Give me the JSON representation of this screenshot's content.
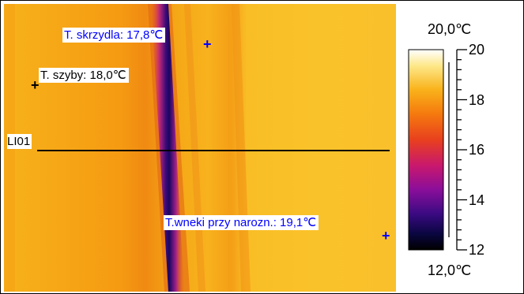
{
  "markers": [
    {
      "label": "T. skrzydla: 17,8℃",
      "color": "#0000ff"
    },
    {
      "label": "T. szyby: 18,0℃",
      "color": "#000000"
    },
    {
      "label": "T.wneki przy narozn.: 19,1℃",
      "color": "#0000ff"
    }
  ],
  "line_label": "LI01",
  "cross_symbol": "+",
  "scale": {
    "max_label": "20,0℃",
    "min_label": "12,0℃",
    "ticks": [
      "20",
      "18",
      "16",
      "14",
      "12"
    ]
  }
}
